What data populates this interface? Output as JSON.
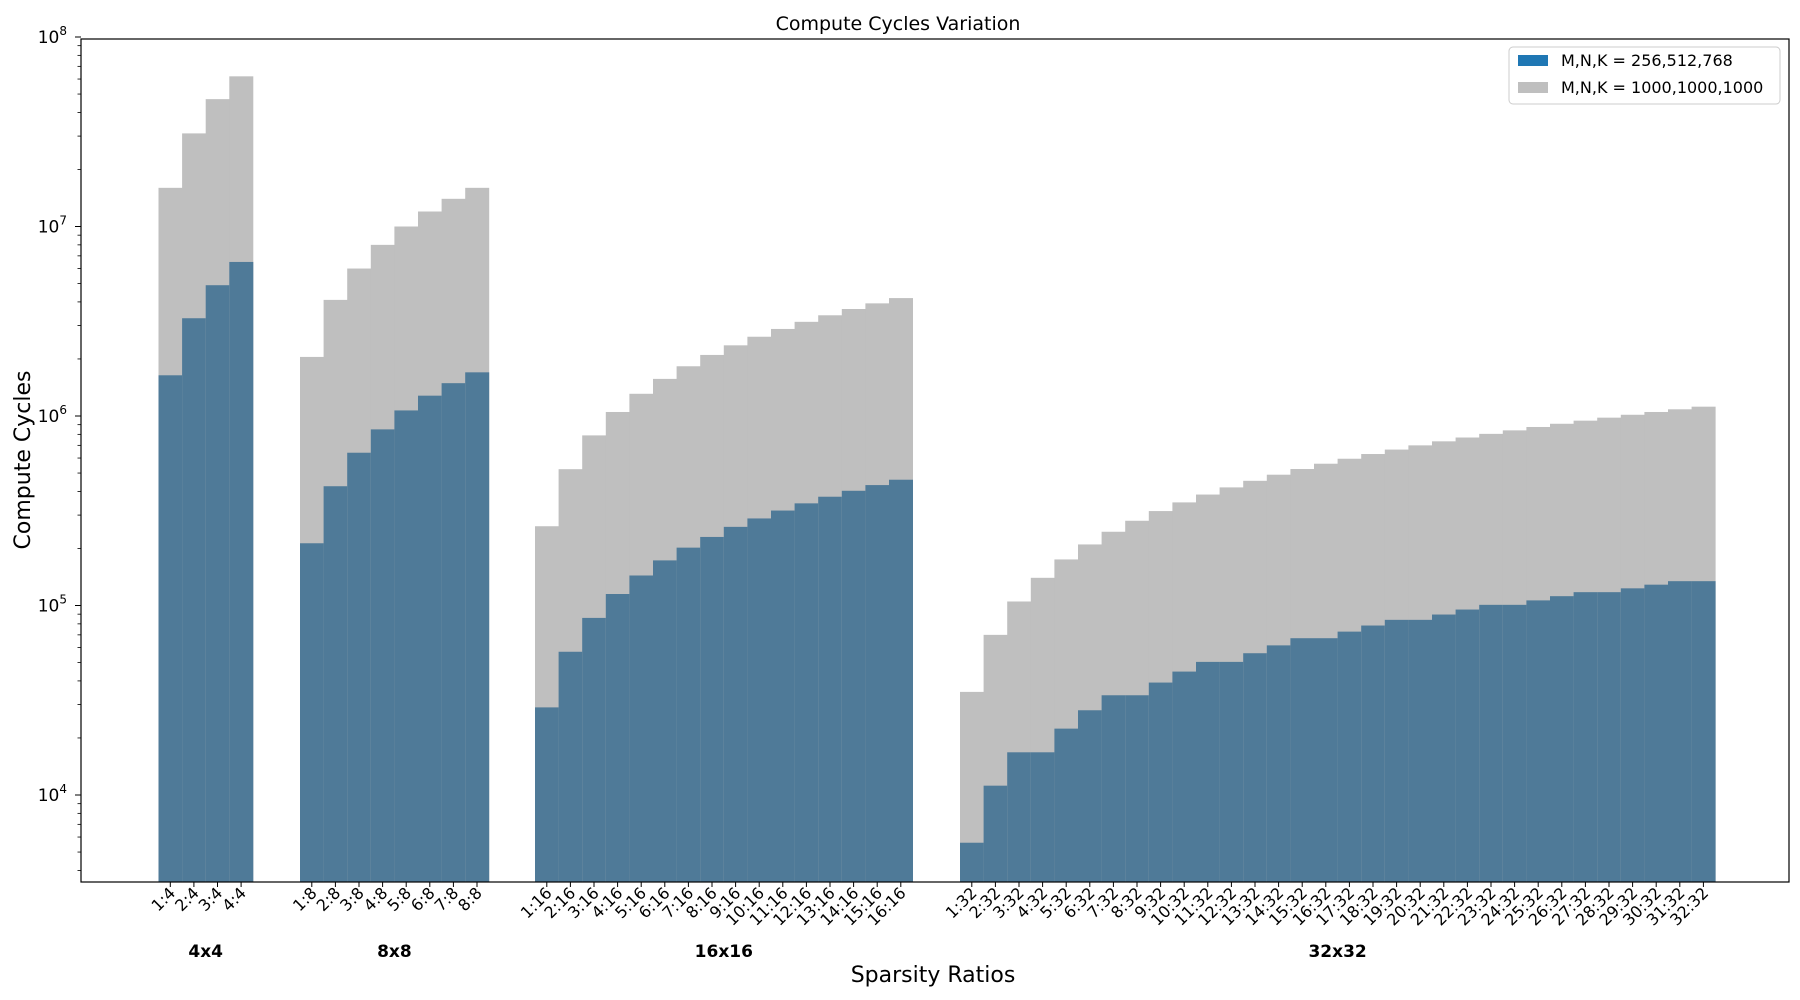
{
  "chart_data": {
    "type": "bar",
    "title": "Compute Cycles Variation",
    "xlabel": "Sparsity Ratios",
    "ylabel": "Compute Cycles",
    "yscale": "log",
    "ylim": [
      3500,
      100000000
    ],
    "yticks": [
      {
        "value": 10000,
        "base": "10",
        "exp": "4"
      },
      {
        "value": 100000,
        "base": "10",
        "exp": "5"
      },
      {
        "value": 1000000,
        "base": "10",
        "exp": "6"
      },
      {
        "value": 10000000,
        "base": "10",
        "exp": "7"
      },
      {
        "value": 100000000,
        "base": "10",
        "exp": "8"
      }
    ],
    "grid": false,
    "legend_position": "top-right",
    "colors": {
      "series_a": "#1f77b4",
      "series_b": "#bfbfbf",
      "overlap": "#4f7a98"
    },
    "series": [
      {
        "name": "M,N,K = 256,512,768",
        "color": "#1f77b4",
        "render_color": "#4f7a98"
      },
      {
        "name": "M,N,K = 1000,1000,1000",
        "color": "#bfbfbf",
        "render_color": "#bfbfbf"
      }
    ],
    "groups": [
      {
        "name": "4x4",
        "categories": [
          "1:4",
          "2:4",
          "3:4",
          "4:4"
        ],
        "values_256_512_768": [
          1640000,
          3280000,
          4900000,
          6500000
        ],
        "values_1000_1000_1000": [
          16000000,
          31000000,
          47000000,
          62000000
        ]
      },
      {
        "name": "8x8",
        "categories": [
          "1:8",
          "2:8",
          "3:8",
          "4:8",
          "5:8",
          "6:8",
          "7:8",
          "8:8"
        ],
        "values_256_512_768": [
          213000,
          426000,
          640000,
          850000,
          1070000,
          1280000,
          1490000,
          1700000
        ],
        "values_1000_1000_1000": [
          2050000,
          4100000,
          6000000,
          8000000,
          10000000,
          12000000,
          14000000,
          16000000
        ]
      },
      {
        "name": "16x16",
        "categories": [
          "1:16",
          "2:16",
          "3:16",
          "4:16",
          "5:16",
          "6:16",
          "7:16",
          "8:16",
          "9:16",
          "10:16",
          "11:16",
          "12:16",
          "13:16",
          "14:16",
          "15:16",
          "16:16"
        ],
        "values_256_512_768": [
          29000,
          57000,
          86000,
          115000,
          144000,
          173000,
          202000,
          230000,
          260000,
          288000,
          317000,
          346000,
          375000,
          403000,
          432000,
          461000
        ],
        "values_1000_1000_1000": [
          262000,
          524000,
          790000,
          1050000,
          1310000,
          1570000,
          1830000,
          2100000,
          2360000,
          2620000,
          2880000,
          3140000,
          3400000,
          3670000,
          3930000,
          4190000
        ]
      },
      {
        "name": "32x32",
        "categories": [
          "1:32",
          "2:32",
          "3:32",
          "4:32",
          "5:32",
          "6:32",
          "7:32",
          "8:32",
          "9:32",
          "10:32",
          "11:32",
          "12:32",
          "13:32",
          "14:32",
          "15:32",
          "16:32",
          "17:32",
          "18:32",
          "19:32",
          "20:32",
          "21:32",
          "22:32",
          "23:32",
          "24:32",
          "25:32",
          "26:32",
          "27:32",
          "28:32",
          "29:32",
          "30:32",
          "31:32",
          "32:32"
        ],
        "values_256_512_768": [
          5600,
          11200,
          16800,
          16800,
          22400,
          28000,
          33600,
          33600,
          39200,
          44800,
          50400,
          50400,
          56000,
          61600,
          67200,
          67200,
          72800,
          78400,
          84000,
          84000,
          89600,
          95200,
          100800,
          100800,
          106400,
          112000,
          117600,
          117600,
          123200,
          128800,
          134400,
          134400
        ],
        "values_1000_1000_1000": [
          35000,
          70000,
          105000,
          140000,
          175000,
          210000,
          245000,
          280000,
          315000,
          350000,
          385000,
          420000,
          455000,
          490000,
          525000,
          560000,
          595000,
          630000,
          665000,
          700000,
          735000,
          770000,
          805000,
          840000,
          875000,
          910000,
          945000,
          980000,
          1015000,
          1050000,
          1085000,
          1120000
        ]
      }
    ]
  }
}
